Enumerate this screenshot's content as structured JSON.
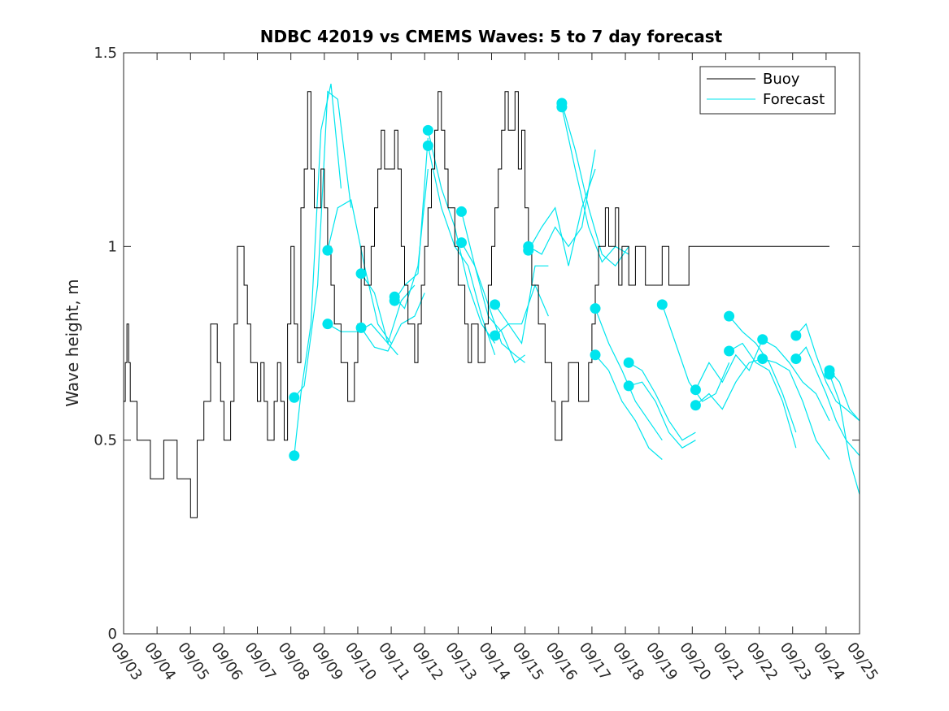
{
  "chart_data": {
    "type": "line",
    "title": "NDBC 42019 vs CMEMS Waves: 5 to 7 day forecast",
    "xlabel": "",
    "ylabel": "Wave height, m",
    "xlim": [
      0,
      22
    ],
    "ylim": [
      0,
      1.5
    ],
    "yticks": [
      0,
      0.5,
      1,
      1.5
    ],
    "ytick_labels": [
      "0",
      "0.5",
      "1",
      "1.5"
    ],
    "xtick_labels": [
      "09/03",
      "09/04",
      "09/05",
      "09/06",
      "09/07",
      "09/08",
      "09/09",
      "09/10",
      "09/11",
      "09/12",
      "09/13",
      "09/14",
      "09/15",
      "09/16",
      "09/17",
      "09/18",
      "09/19",
      "09/20",
      "09/21",
      "09/22",
      "09/23",
      "09/24",
      "09/25"
    ],
    "legend": {
      "location": "top-right",
      "entries": [
        "Buoy",
        "Forecast"
      ]
    },
    "colors": {
      "buoy": "#000000",
      "forecast": "#00e5ee"
    },
    "series": [
      {
        "name": "Buoy",
        "x": [
          0,
          0.05,
          0.1,
          0.15,
          0.2,
          0.3,
          0.4,
          0.5,
          0.6,
          0.8,
          0.9,
          1.0,
          1.2,
          1.4,
          1.6,
          1.8,
          2.0,
          2.2,
          2.4,
          2.6,
          2.7,
          2.8,
          2.9,
          3.0,
          3.1,
          3.2,
          3.3,
          3.4,
          3.5,
          3.6,
          3.7,
          3.8,
          3.9,
          4.0,
          4.1,
          4.2,
          4.3,
          4.4,
          4.5,
          4.6,
          4.7,
          4.8,
          4.9,
          5.0,
          5.1,
          5.2,
          5.3,
          5.4,
          5.5,
          5.6,
          5.7,
          5.8,
          5.9,
          6.0,
          6.1,
          6.2,
          6.3,
          6.4,
          6.5,
          6.6,
          6.7,
          6.8,
          6.9,
          7.0,
          7.1,
          7.2,
          7.3,
          7.4,
          7.5,
          7.6,
          7.7,
          7.8,
          7.9,
          8.0,
          8.1,
          8.2,
          8.3,
          8.4,
          8.5,
          8.6,
          8.7,
          8.8,
          8.9,
          9.0,
          9.1,
          9.2,
          9.3,
          9.4,
          9.5,
          9.6,
          9.7,
          9.8,
          9.9,
          10.0,
          10.1,
          10.2,
          10.3,
          10.4,
          10.5,
          10.6,
          10.7,
          10.8,
          10.9,
          11.0,
          11.1,
          11.2,
          11.3,
          11.4,
          11.5,
          11.6,
          11.7,
          11.8,
          11.9,
          12.0,
          12.1,
          12.2,
          12.3,
          12.4,
          12.5,
          12.6,
          12.7,
          12.8,
          12.9,
          13.0,
          13.1,
          13.2,
          13.3,
          13.4,
          13.5,
          13.6,
          13.7,
          13.8,
          13.9,
          14.0,
          14.1,
          14.2,
          14.3,
          14.4,
          14.5,
          14.6,
          14.7,
          14.8,
          14.9,
          15.0,
          15.1,
          15.2,
          15.3,
          15.4,
          15.5,
          15.6,
          15.7,
          15.8,
          15.9,
          16.0,
          16.1,
          16.2,
          16.3,
          16.4,
          16.5,
          16.6,
          16.7,
          16.8,
          16.9,
          17.0,
          17.1,
          17.2,
          17.3,
          17.4,
          17.5,
          17.6,
          17.7,
          17.8,
          17.9,
          18.0,
          18.1,
          18.2,
          18.3,
          18.4,
          18.5,
          18.6,
          18.7,
          18.8,
          18.9,
          19.0,
          19.1,
          19.2,
          19.3,
          19.4,
          19.5,
          19.6,
          19.7,
          19.8,
          19.9,
          20.0,
          20.1,
          20.2,
          20.3,
          20.4,
          20.5,
          20.6,
          20.7,
          20.8,
          20.9,
          21.0,
          21.1
        ],
        "y": [
          0.6,
          0.7,
          0.8,
          0.7,
          0.6,
          0.6,
          0.5,
          0.5,
          0.5,
          0.4,
          0.4,
          0.4,
          0.5,
          0.5,
          0.4,
          0.4,
          0.3,
          0.5,
          0.6,
          0.8,
          0.8,
          0.7,
          0.6,
          0.5,
          0.5,
          0.6,
          0.8,
          1.0,
          1.0,
          0.9,
          0.8,
          0.7,
          0.7,
          0.6,
          0.7,
          0.6,
          0.5,
          0.5,
          0.6,
          0.7,
          0.6,
          0.5,
          0.8,
          1.0,
          0.8,
          0.7,
          1.1,
          1.2,
          1.4,
          1.2,
          1.1,
          1.1,
          1.2,
          1.1,
          1.0,
          0.9,
          0.8,
          0.8,
          0.7,
          0.7,
          0.6,
          0.6,
          0.7,
          0.8,
          1.0,
          0.9,
          0.9,
          1.0,
          1.1,
          1.2,
          1.3,
          1.2,
          1.2,
          1.2,
          1.3,
          1.2,
          1.0,
          0.9,
          0.8,
          0.8,
          0.7,
          0.8,
          0.9,
          1.0,
          1.1,
          1.2,
          1.3,
          1.4,
          1.3,
          1.2,
          1.1,
          1.1,
          1.0,
          0.9,
          0.9,
          0.8,
          0.7,
          0.8,
          0.8,
          0.7,
          0.7,
          0.8,
          0.9,
          1.0,
          1.1,
          1.2,
          1.3,
          1.4,
          1.3,
          1.3,
          1.4,
          1.2,
          1.3,
          1.1,
          1.0,
          0.9,
          0.9,
          0.8,
          0.8,
          0.7,
          0.7,
          0.6,
          0.5,
          0.5,
          0.6,
          0.6,
          0.7,
          0.7,
          0.7,
          0.6,
          0.6,
          0.6,
          0.7,
          0.8,
          0.9,
          1.0,
          1.0,
          1.1,
          1.0,
          1.0,
          1.1,
          0.9,
          1.0,
          1.0,
          0.9,
          0.9,
          1.0,
          1.0,
          1.0,
          0.9,
          0.9,
          0.9,
          0.9,
          0.9,
          1.0,
          1.0,
          0.9,
          0.9,
          0.9,
          0.9,
          0.9,
          0.9,
          1.0,
          1.0,
          1.0,
          1.0,
          1.0,
          1.0,
          1.0,
          1.0,
          1.0,
          1.0,
          1.0,
          1.0,
          1.0,
          1.0,
          1.0,
          1.0,
          1.0,
          1.0,
          1.0,
          1.0,
          1.0,
          1.0,
          1.0,
          1.0,
          1.0,
          1.0,
          1.0,
          1.0,
          1.0,
          1.0,
          1.0,
          1.0,
          1.0,
          1.0,
          1.0,
          1.0,
          1.0,
          1.0,
          1.0,
          1.0,
          1.0,
          1.0,
          1.0
        ]
      },
      {
        "name": "Forecast",
        "segments": [
          {
            "x": [
              5.1,
              5.3,
              5.6,
              5.9,
              6.2,
              6.5
            ],
            "y": [
              0.46,
              0.62,
              0.8,
              1.3,
              1.42,
              1.15
            ]
          },
          {
            "x": [
              5.1,
              5.4,
              5.8,
              6.1,
              6.4,
              6.8
            ],
            "y": [
              0.61,
              0.64,
              0.9,
              1.4,
              1.38,
              1.1
            ]
          },
          {
            "x": [
              6.1,
              6.4,
              6.8,
              7.2,
              7.6,
              8.0
            ],
            "y": [
              0.99,
              1.1,
              1.12,
              0.95,
              0.8,
              0.75
            ]
          },
          {
            "x": [
              6.1,
              6.5,
              7.0,
              7.4,
              7.8,
              8.2
            ],
            "y": [
              0.8,
              0.78,
              0.78,
              0.8,
              0.76,
              0.72
            ]
          },
          {
            "x": [
              7.1,
              7.5,
              7.9,
              8.3,
              8.7
            ],
            "y": [
              0.93,
              0.88,
              0.75,
              0.86,
              0.9
            ]
          },
          {
            "x": [
              7.1,
              7.5,
              7.9,
              8.3,
              8.7,
              9.0
            ],
            "y": [
              0.79,
              0.74,
              0.73,
              0.8,
              0.82,
              0.88
            ]
          },
          {
            "x": [
              8.1,
              8.4,
              8.8,
              9.1
            ],
            "y": [
              0.87,
              0.84,
              0.95,
              1.2
            ]
          },
          {
            "x": [
              8.1,
              8.4,
              8.8,
              9.1
            ],
            "y": [
              0.86,
              0.9,
              0.93,
              1.28
            ]
          },
          {
            "x": [
              9.1,
              9.5,
              9.9,
              10.3,
              10.7,
              11.1
            ],
            "y": [
              1.3,
              1.15,
              1.05,
              0.9,
              0.8,
              0.75
            ]
          },
          {
            "x": [
              9.1,
              9.5,
              9.9,
              10.3,
              10.7,
              11.1
            ],
            "y": [
              1.26,
              1.1,
              1.0,
              0.95,
              0.82,
              0.72
            ]
          },
          {
            "x": [
              10.1,
              10.5,
              10.9,
              11.3,
              11.7,
              12.0
            ],
            "y": [
              1.09,
              0.95,
              0.85,
              0.75,
              0.72,
              0.7
            ]
          },
          {
            "x": [
              10.1,
              10.5,
              10.9,
              11.3,
              11.7,
              12.0
            ],
            "y": [
              1.01,
              0.95,
              0.82,
              0.78,
              0.7,
              0.72
            ]
          },
          {
            "x": [
              11.1,
              11.5,
              11.9,
              12.3,
              12.7
            ],
            "y": [
              0.85,
              0.8,
              0.75,
              0.95,
              0.95
            ]
          },
          {
            "x": [
              11.1,
              11.5,
              11.9,
              12.3,
              12.7
            ],
            "y": [
              0.77,
              0.8,
              0.8,
              0.9,
              0.82
            ]
          },
          {
            "x": [
              12.1,
              12.5,
              12.9,
              13.3,
              13.7,
              14.1
            ],
            "y": [
              0.99,
              1.05,
              1.1,
              0.95,
              1.1,
              1.2
            ]
          },
          {
            "x": [
              12.1,
              12.5,
              12.9,
              13.3,
              13.7,
              14.1
            ],
            "y": [
              1.0,
              0.98,
              1.05,
              1.0,
              1.05,
              1.25
            ]
          },
          {
            "x": [
              13.1,
              13.5,
              13.9,
              14.3,
              14.7,
              15.1
            ],
            "y": [
              1.37,
              1.25,
              1.1,
              0.98,
              0.95,
              1.0
            ]
          },
          {
            "x": [
              13.1,
              13.5,
              13.9,
              14.3,
              14.7,
              15.1
            ],
            "y": [
              1.36,
              1.2,
              1.05,
              0.96,
              1.0,
              0.98
            ]
          },
          {
            "x": [
              14.1,
              14.5,
              14.9,
              15.3,
              15.7,
              16.1
            ],
            "y": [
              0.84,
              0.75,
              0.68,
              0.6,
              0.55,
              0.5
            ]
          },
          {
            "x": [
              14.1,
              14.5,
              14.9,
              15.3,
              15.7,
              16.1
            ],
            "y": [
              0.72,
              0.68,
              0.6,
              0.55,
              0.48,
              0.45
            ]
          },
          {
            "x": [
              15.1,
              15.5,
              15.9,
              16.3,
              16.7,
              17.1
            ],
            "y": [
              0.7,
              0.68,
              0.62,
              0.55,
              0.5,
              0.52
            ]
          },
          {
            "x": [
              15.1,
              15.5,
              15.9,
              16.3,
              16.7,
              17.1
            ],
            "y": [
              0.64,
              0.65,
              0.6,
              0.52,
              0.48,
              0.5
            ]
          },
          {
            "x": [
              16.1,
              16.5,
              16.9,
              17.3,
              17.7,
              18.1
            ],
            "y": [
              0.85,
              0.75,
              0.65,
              0.6,
              0.62,
              0.7
            ]
          },
          {
            "x": [
              17.1,
              17.5,
              17.9,
              18.3,
              18.7,
              19.1
            ],
            "y": [
              0.63,
              0.7,
              0.65,
              0.72,
              0.68,
              0.76
            ]
          },
          {
            "x": [
              17.1,
              17.5,
              17.9,
              18.3,
              18.7,
              19.1
            ],
            "y": [
              0.59,
              0.62,
              0.58,
              0.65,
              0.7,
              0.71
            ]
          },
          {
            "x": [
              18.1,
              18.5,
              18.9,
              19.3,
              19.7,
              20.1
            ],
            "y": [
              0.82,
              0.78,
              0.75,
              0.7,
              0.62,
              0.52
            ]
          },
          {
            "x": [
              18.1,
              18.5,
              18.9,
              19.3,
              19.7,
              20.1
            ],
            "y": [
              0.73,
              0.75,
              0.7,
              0.68,
              0.6,
              0.48
            ]
          },
          {
            "x": [
              19.1,
              19.5,
              19.9,
              20.3,
              20.7,
              21.1
            ],
            "y": [
              0.76,
              0.74,
              0.7,
              0.65,
              0.62,
              0.55
            ]
          },
          {
            "x": [
              19.1,
              19.5,
              19.9,
              20.3,
              20.7,
              21.1
            ],
            "y": [
              0.71,
              0.7,
              0.68,
              0.6,
              0.5,
              0.45
            ]
          },
          {
            "x": [
              20.1,
              20.4,
              20.7,
              21.0,
              21.3,
              21.6,
              22.0
            ],
            "y": [
              0.77,
              0.8,
              0.72,
              0.65,
              0.6,
              0.58,
              0.55
            ]
          },
          {
            "x": [
              20.1,
              20.4,
              20.7,
              21.0,
              21.3,
              21.6,
              22.0
            ],
            "y": [
              0.71,
              0.74,
              0.68,
              0.62,
              0.55,
              0.5,
              0.46
            ]
          },
          {
            "x": [
              21.1,
              21.4,
              21.7,
              22.0
            ],
            "y": [
              0.68,
              0.65,
              0.58,
              0.55
            ]
          },
          {
            "x": [
              21.1,
              21.4,
              21.7,
              22.0
            ],
            "y": [
              0.67,
              0.6,
              0.45,
              0.36
            ]
          }
        ],
        "markers": [
          [
            5.1,
            0.46
          ],
          [
            5.1,
            0.61
          ],
          [
            6.1,
            0.99
          ],
          [
            6.1,
            0.8
          ],
          [
            7.1,
            0.93
          ],
          [
            7.1,
            0.79
          ],
          [
            8.1,
            0.87
          ],
          [
            8.1,
            0.86
          ],
          [
            9.1,
            1.3
          ],
          [
            9.1,
            1.26
          ],
          [
            10.1,
            1.09
          ],
          [
            10.1,
            1.01
          ],
          [
            11.1,
            0.85
          ],
          [
            11.1,
            0.77
          ],
          [
            12.1,
            0.99
          ],
          [
            12.1,
            1.0
          ],
          [
            13.1,
            1.37
          ],
          [
            13.1,
            1.36
          ],
          [
            14.1,
            0.84
          ],
          [
            14.1,
            0.72
          ],
          [
            15.1,
            0.7
          ],
          [
            15.1,
            0.64
          ],
          [
            16.1,
            0.85
          ],
          [
            17.1,
            0.63
          ],
          [
            17.1,
            0.59
          ],
          [
            18.1,
            0.82
          ],
          [
            18.1,
            0.73
          ],
          [
            19.1,
            0.76
          ],
          [
            19.1,
            0.71
          ],
          [
            20.1,
            0.77
          ],
          [
            20.1,
            0.71
          ],
          [
            21.1,
            0.68
          ],
          [
            21.1,
            0.67
          ]
        ]
      }
    ]
  }
}
